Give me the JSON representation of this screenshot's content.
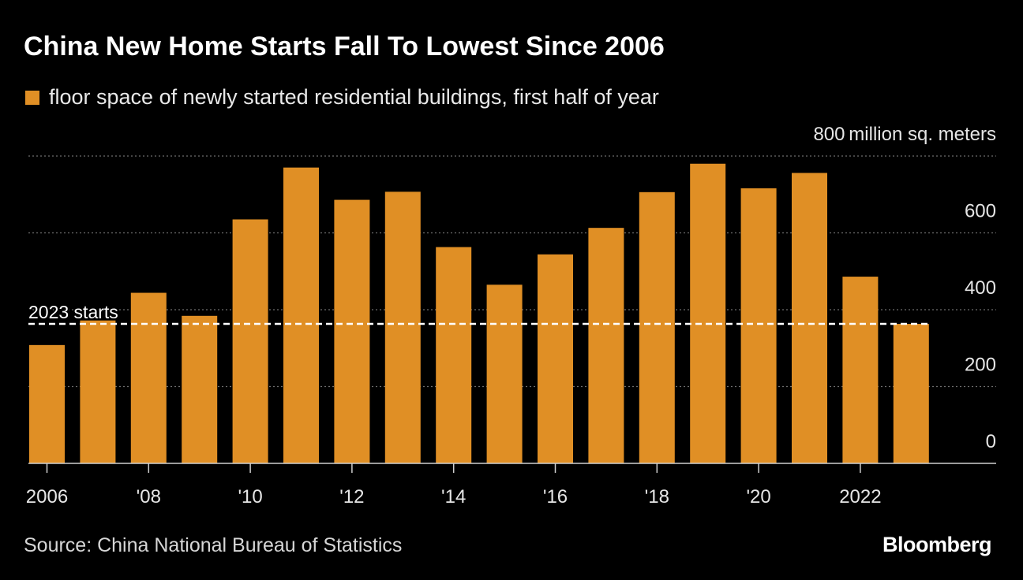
{
  "header": {
    "title": "China New Home Starts Fall To Lowest Since 2006"
  },
  "footer": {
    "source": "Source: China National Bureau of Statistics",
    "brand": "Bloomberg"
  },
  "colors": {
    "background": "#000000",
    "bar": "#e08f25",
    "text": "#ffffff",
    "grid": "#6e6e6e"
  },
  "chart_data": {
    "type": "bar",
    "legend": "floor space of newly started residential buildings, first half of year",
    "legend_position": "top-left",
    "unit_label": "million sq. meters",
    "x": [
      2006,
      2007,
      2008,
      2009,
      2010,
      2011,
      2012,
      2013,
      2014,
      2015,
      2016,
      2017,
      2018,
      2019,
      2020,
      2021,
      2022,
      2023
    ],
    "values": [
      308,
      372,
      444,
      384,
      635,
      770,
      686,
      707,
      563,
      465,
      544,
      613,
      706,
      780,
      716,
      756,
      486,
      363
    ],
    "x_tick_labels": [
      {
        "x": 2006,
        "label": "2006"
      },
      {
        "x": 2008,
        "label": "'08"
      },
      {
        "x": 2010,
        "label": "'10"
      },
      {
        "x": 2012,
        "label": "'12"
      },
      {
        "x": 2014,
        "label": "'14"
      },
      {
        "x": 2016,
        "label": "'16"
      },
      {
        "x": 2018,
        "label": "'18"
      },
      {
        "x": 2020,
        "label": "'20"
      },
      {
        "x": 2022,
        "label": "2022"
      }
    ],
    "y_ticks": [
      0,
      200,
      400,
      600,
      800
    ],
    "ylim": [
      0,
      800
    ],
    "grid": true,
    "annotations": [
      {
        "type": "reference-line",
        "value": 363,
        "label": "2023 starts"
      }
    ]
  }
}
